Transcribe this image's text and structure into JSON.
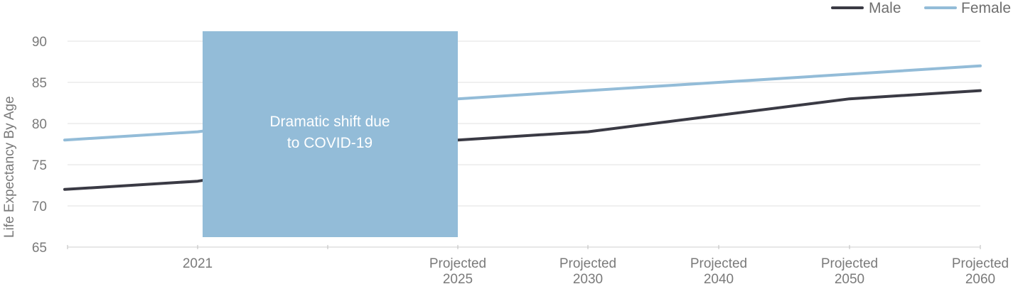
{
  "chart_data": {
    "type": "line",
    "ylabel": "Life Expectancy By Age",
    "xlabel": "",
    "ylim": [
      65,
      90
    ],
    "yticks": [
      65,
      70,
      75,
      80,
      85,
      90
    ],
    "grid": true,
    "legend_position": "top-right",
    "categories": [
      "2021",
      "",
      "Projected 2025",
      "Projected 2030",
      "Projected 2040",
      "Projected 2050",
      "Projected 2060"
    ],
    "series": [
      {
        "name": "Male",
        "color": "#3a3a44",
        "values": [
          73,
          null,
          78,
          79,
          81,
          83,
          84
        ],
        "start_value": 72
      },
      {
        "name": "Female",
        "color": "#93bcd8",
        "values": [
          79,
          null,
          83,
          84,
          85,
          86,
          87
        ],
        "start_value": 78
      }
    ],
    "annotation": {
      "line1": "Dramatic shift due",
      "line2": "to COVID-19",
      "color": "#93bcd8"
    }
  }
}
